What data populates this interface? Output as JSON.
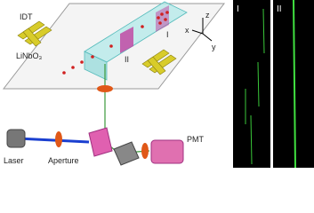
{
  "labels": {
    "idt": "IDT",
    "substrate": "LiNbO₃",
    "axis_z": "z",
    "axis_x": "x",
    "axis_y": "y",
    "region_1": "I",
    "region_2": "II",
    "laser": "Laser",
    "aperture": "Aperture",
    "pmt": "PMT"
  },
  "panels": [
    {
      "label": "I"
    },
    {
      "label": "II"
    }
  ]
}
